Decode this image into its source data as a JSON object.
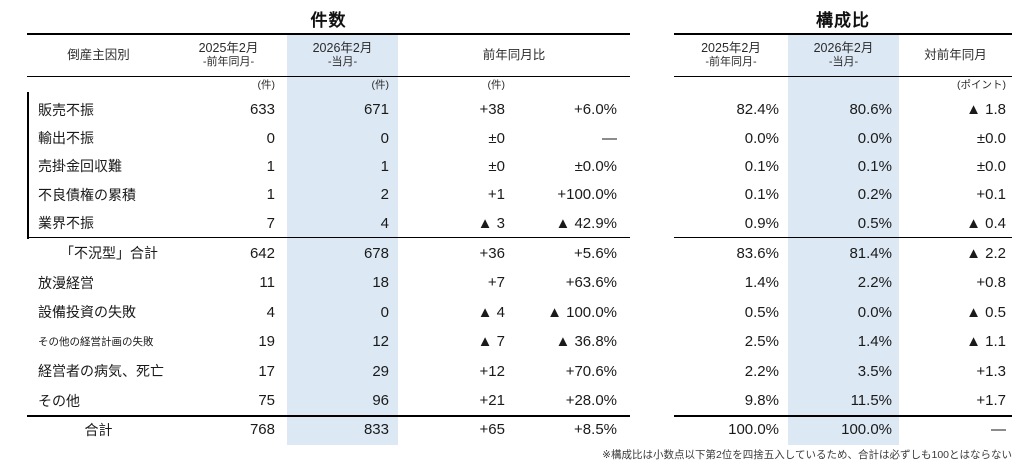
{
  "left": {
    "title": "件数",
    "cause_header": "倒産主因別",
    "col_2025": "2025年2月",
    "col_2025_sub": "-前年同月-",
    "col_2026": "2026年2月",
    "col_2026_sub": "-当月-",
    "col_yoy": "前年同月比",
    "unit_2025": "(件)",
    "unit_2026": "(件)",
    "unit_diff": "(件)"
  },
  "right": {
    "title": "構成比",
    "col_2025": "2025年2月",
    "col_2025_sub": "-前年同月-",
    "col_2026": "2026年2月",
    "col_2026_sub": "-当月-",
    "col_yoy": "対前年同月",
    "unit_diff": "(ポイント)"
  },
  "footnote": "※構成比は小数点以下第2位を四捨五入しているため、合計は必ずしも100とはならない",
  "colors": {
    "highlight": "#dce8f4",
    "rule": "#000000",
    "text": "#1a1a1a"
  },
  "chart_data": {
    "type": "table",
    "title": "倒産主因別 件数・構成比 (2025年2月/2026年2月)",
    "sections": [
      "件数",
      "構成比"
    ],
    "columns": [
      "倒産主因別",
      "件数 2025年2月 -前年同月- (件)",
      "件数 2026年2月 -当月- (件)",
      "前年同月比 (件)",
      "前年同月比 (%)",
      "構成比 2025年2月 -前年同月-",
      "構成比 2026年2月 -当月-",
      "対前年同月 (ポイント)"
    ],
    "rows": [
      [
        "販売不振",
        "633",
        "671",
        "+38",
        "+6.0%",
        "82.4%",
        "80.6%",
        "▲ 1.8"
      ],
      [
        "輸出不振",
        "0",
        "0",
        "±0",
        "—",
        "0.0%",
        "0.0%",
        "±0.0"
      ],
      [
        "売掛金回収難",
        "1",
        "1",
        "±0",
        "±0.0%",
        "0.1%",
        "0.1%",
        "±0.0"
      ],
      [
        "不良債権の累積",
        "1",
        "2",
        "+1",
        "+100.0%",
        "0.1%",
        "0.2%",
        "+0.1"
      ],
      [
        "業界不振",
        "7",
        "4",
        "▲ 3",
        "▲ 42.9%",
        "0.9%",
        "0.5%",
        "▲ 0.4"
      ],
      [
        "「不況型」合計",
        "642",
        "678",
        "+36",
        "+5.6%",
        "83.6%",
        "81.4%",
        "▲ 2.2"
      ],
      [
        "放漫経営",
        "11",
        "18",
        "+7",
        "+63.6%",
        "1.4%",
        "2.2%",
        "+0.8"
      ],
      [
        "設備投資の失敗",
        "4",
        "0",
        "▲ 4",
        "▲ 100.0%",
        "0.5%",
        "0.0%",
        "▲ 0.5"
      ],
      [
        "その他の経営計画の失敗",
        "19",
        "12",
        "▲ 7",
        "▲ 36.8%",
        "2.5%",
        "1.4%",
        "▲ 1.1"
      ],
      [
        "経営者の病気、死亡",
        "17",
        "29",
        "+12",
        "+70.6%",
        "2.2%",
        "3.5%",
        "+1.3"
      ],
      [
        "その他",
        "75",
        "96",
        "+21",
        "+28.0%",
        "9.8%",
        "11.5%",
        "+1.7"
      ],
      [
        "合計",
        "768",
        "833",
        "+65",
        "+8.5%",
        "100.0%",
        "100.0%",
        "—"
      ]
    ]
  }
}
